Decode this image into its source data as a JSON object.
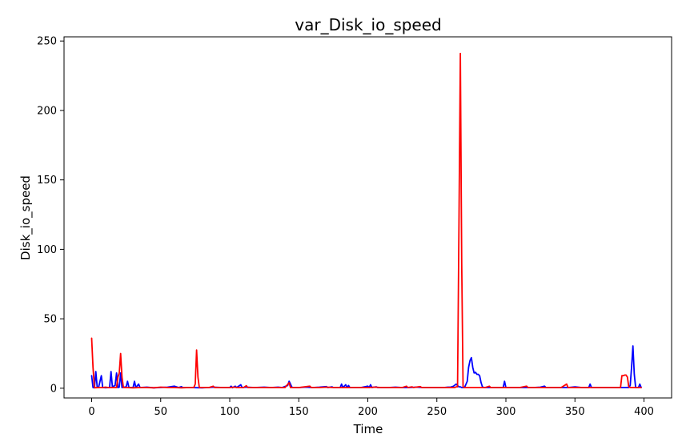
{
  "chart_data": {
    "type": "line",
    "title": "var_Disk_io_speed",
    "xlabel": "Time",
    "ylabel": "Disk_io_speed",
    "xlim": [
      -20,
      420
    ],
    "ylim": [
      -7,
      253
    ],
    "x_ticks": [
      0,
      50,
      100,
      150,
      200,
      250,
      300,
      350,
      400
    ],
    "y_ticks": [
      0,
      50,
      100,
      150,
      200,
      250
    ],
    "grid": false,
    "legend": "none",
    "series": [
      {
        "color": "#0000ff",
        "points": [
          [
            0,
            9
          ],
          [
            1,
            0.5
          ],
          [
            2,
            0.3
          ],
          [
            3,
            12
          ],
          [
            4,
            1
          ],
          [
            5,
            0.5
          ],
          [
            7,
            9
          ],
          [
            8,
            0.5
          ],
          [
            10,
            0.4
          ],
          [
            13,
            0.5
          ],
          [
            14,
            12
          ],
          [
            15,
            1
          ],
          [
            17,
            2
          ],
          [
            18,
            11
          ],
          [
            19,
            0.5
          ],
          [
            20,
            0.8
          ],
          [
            21,
            11
          ],
          [
            22,
            0.5
          ],
          [
            25,
            1
          ],
          [
            26,
            5
          ],
          [
            27,
            0.5
          ],
          [
            30,
            0.6
          ],
          [
            31,
            5
          ],
          [
            32,
            0.5
          ],
          [
            34,
            3
          ],
          [
            35,
            0.5
          ],
          [
            40,
            0.8
          ],
          [
            45,
            0.3
          ],
          [
            55,
            0.8
          ],
          [
            60,
            1.5
          ],
          [
            63,
            0.5
          ],
          [
            65,
            1.2
          ],
          [
            66,
            0.5
          ],
          [
            70,
            0.5
          ],
          [
            80,
            0.3
          ],
          [
            85,
            0.5
          ],
          [
            88,
            0.8
          ],
          [
            95,
            0.5
          ],
          [
            100,
            0.5
          ],
          [
            101,
            1.5
          ],
          [
            102,
            0.4
          ],
          [
            104,
            1.5
          ],
          [
            105,
            0.5
          ],
          [
            108,
            2.5
          ],
          [
            109,
            0.5
          ],
          [
            112,
            0.8
          ],
          [
            118,
            0.5
          ],
          [
            125,
            0.8
          ],
          [
            130,
            0.5
          ],
          [
            135,
            0.8
          ],
          [
            138,
            0.5
          ],
          [
            142,
            2
          ],
          [
            143,
            5
          ],
          [
            144,
            3
          ],
          [
            145,
            0.8
          ],
          [
            146,
            0.5
          ],
          [
            150,
            0.5
          ],
          [
            155,
            0.8
          ],
          [
            160,
            0.5
          ],
          [
            165,
            0.8
          ],
          [
            170,
            1.2
          ],
          [
            171,
            0.5
          ],
          [
            174,
            1
          ],
          [
            175,
            0.5
          ],
          [
            180,
            0.5
          ],
          [
            181,
            3
          ],
          [
            182,
            0.5
          ],
          [
            184,
            2.5
          ],
          [
            185,
            0.5
          ],
          [
            186,
            2
          ],
          [
            187,
            0.5
          ],
          [
            190,
            0.5
          ],
          [
            195,
            0.5
          ],
          [
            200,
            1.5
          ],
          [
            201,
            0.5
          ],
          [
            202,
            2.5
          ],
          [
            203,
            0.5
          ],
          [
            206,
            1
          ],
          [
            207,
            0.5
          ],
          [
            210,
            0.5
          ],
          [
            215,
            0.5
          ],
          [
            220,
            0.8
          ],
          [
            225,
            0.5
          ],
          [
            230,
            0.5
          ],
          [
            235,
            0.8
          ],
          [
            240,
            0.5
          ],
          [
            245,
            0.5
          ],
          [
            250,
            0.5
          ],
          [
            255,
            0.5
          ],
          [
            258,
            0.8
          ],
          [
            260,
            0.8
          ],
          [
            262,
            1.5
          ],
          [
            264,
            3
          ],
          [
            265,
            2
          ],
          [
            266,
            1
          ],
          [
            267,
            1
          ],
          [
            268,
            0.5
          ],
          [
            270,
            0.5
          ],
          [
            272,
            5
          ],
          [
            273,
            15
          ],
          [
            274,
            20
          ],
          [
            275,
            22
          ],
          [
            276,
            15
          ],
          [
            277,
            11
          ],
          [
            278,
            11.5
          ],
          [
            279,
            10
          ],
          [
            280,
            10
          ],
          [
            281,
            9
          ],
          [
            282,
            4
          ],
          [
            283,
            1
          ],
          [
            284,
            0.5
          ],
          [
            290,
            0.5
          ],
          [
            295,
            0.5
          ],
          [
            298,
            0.5
          ],
          [
            299,
            5
          ],
          [
            300,
            0.5
          ],
          [
            305,
            0.5
          ],
          [
            310,
            0.5
          ],
          [
            315,
            0.5
          ],
          [
            320,
            0.5
          ],
          [
            325,
            0.8
          ],
          [
            328,
            1.5
          ],
          [
            329,
            0.5
          ],
          [
            335,
            0.5
          ],
          [
            340,
            0.5
          ],
          [
            345,
            0.5
          ],
          [
            350,
            1
          ],
          [
            355,
            0.5
          ],
          [
            360,
            0.5
          ],
          [
            361,
            3
          ],
          [
            362,
            0.5
          ],
          [
            365,
            0.5
          ],
          [
            370,
            0.5
          ],
          [
            375,
            0.5
          ],
          [
            380,
            0.5
          ],
          [
            385,
            0.5
          ],
          [
            389,
            0.5
          ],
          [
            390,
            2
          ],
          [
            391,
            15
          ],
          [
            392,
            30.5
          ],
          [
            393,
            10
          ],
          [
            394,
            0.5
          ],
          [
            396,
            0.5
          ],
          [
            397,
            3
          ],
          [
            398,
            0.5
          ]
        ]
      },
      {
        "color": "#ff0000",
        "points": [
          [
            0,
            36
          ],
          [
            1,
            15
          ],
          [
            2,
            0.5
          ],
          [
            3,
            0.4
          ],
          [
            5,
            0.5
          ],
          [
            8,
            0.5
          ],
          [
            10,
            0.8
          ],
          [
            12,
            0.5
          ],
          [
            15,
            0.5
          ],
          [
            18,
            0.5
          ],
          [
            19,
            8
          ],
          [
            20,
            11
          ],
          [
            21,
            25
          ],
          [
            22,
            8
          ],
          [
            23,
            0.5
          ],
          [
            25,
            0.5
          ],
          [
            30,
            0.3
          ],
          [
            35,
            0.5
          ],
          [
            40,
            0.5
          ],
          [
            45,
            0.3
          ],
          [
            50,
            0.8
          ],
          [
            55,
            0.5
          ],
          [
            60,
            0.5
          ],
          [
            65,
            0.3
          ],
          [
            70,
            0.5
          ],
          [
            74,
            0.5
          ],
          [
            75,
            3
          ],
          [
            76,
            27.5
          ],
          [
            77,
            8
          ],
          [
            78,
            0.5
          ],
          [
            80,
            0.5
          ],
          [
            85,
            0.5
          ],
          [
            88,
            1.5
          ],
          [
            89,
            0.5
          ],
          [
            95,
            0.5
          ],
          [
            100,
            0.5
          ],
          [
            103,
            0.8
          ],
          [
            106,
            0.5
          ],
          [
            110,
            0.5
          ],
          [
            112,
            1.8
          ],
          [
            113,
            0.5
          ],
          [
            120,
            0.5
          ],
          [
            125,
            0.5
          ],
          [
            130,
            0.5
          ],
          [
            135,
            0.5
          ],
          [
            140,
            0.5
          ],
          [
            143,
            4
          ],
          [
            144,
            0.5
          ],
          [
            150,
            0.5
          ],
          [
            158,
            1.5
          ],
          [
            159,
            0.5
          ],
          [
            165,
            0.5
          ],
          [
            170,
            0.8
          ],
          [
            175,
            0.5
          ],
          [
            180,
            0.5
          ],
          [
            185,
            0.5
          ],
          [
            190,
            0.5
          ],
          [
            195,
            0.5
          ],
          [
            200,
            0.5
          ],
          [
            205,
            0.8
          ],
          [
            210,
            0.5
          ],
          [
            215,
            0.5
          ],
          [
            220,
            0.5
          ],
          [
            225,
            0.5
          ],
          [
            228,
            1.5
          ],
          [
            229,
            0.5
          ],
          [
            232,
            1
          ],
          [
            233,
            0.5
          ],
          [
            238,
            1.2
          ],
          [
            239,
            0.5
          ],
          [
            245,
            0.5
          ],
          [
            250,
            0.5
          ],
          [
            255,
            0.5
          ],
          [
            260,
            0.5
          ],
          [
            263,
            0.5
          ],
          [
            264,
            1
          ],
          [
            265,
            1
          ],
          [
            266,
            120
          ],
          [
            267,
            241
          ],
          [
            268,
            90
          ],
          [
            269,
            1
          ],
          [
            270,
            0.5
          ],
          [
            275,
            0.5
          ],
          [
            280,
            0.5
          ],
          [
            285,
            0.5
          ],
          [
            288,
            1.5
          ],
          [
            289,
            0.5
          ],
          [
            295,
            0.5
          ],
          [
            300,
            0.5
          ],
          [
            305,
            0.5
          ],
          [
            310,
            0.5
          ],
          [
            315,
            1.5
          ],
          [
            316,
            0.5
          ],
          [
            320,
            0.5
          ],
          [
            325,
            0.5
          ],
          [
            330,
            0.5
          ],
          [
            335,
            0.5
          ],
          [
            340,
            0.5
          ],
          [
            344,
            3
          ],
          [
            345,
            0.5
          ],
          [
            350,
            0.5
          ],
          [
            355,
            0.5
          ],
          [
            360,
            0.5
          ],
          [
            365,
            0.5
          ],
          [
            370,
            0.5
          ],
          [
            375,
            0.5
          ],
          [
            380,
            0.5
          ],
          [
            383,
            0.5
          ],
          [
            384,
            9
          ],
          [
            385,
            9
          ],
          [
            386,
            9.5
          ],
          [
            387,
            9.5
          ],
          [
            388,
            8
          ],
          [
            389,
            1
          ],
          [
            390,
            0.5
          ],
          [
            395,
            0.5
          ],
          [
            398,
            0.5
          ]
        ]
      }
    ]
  }
}
